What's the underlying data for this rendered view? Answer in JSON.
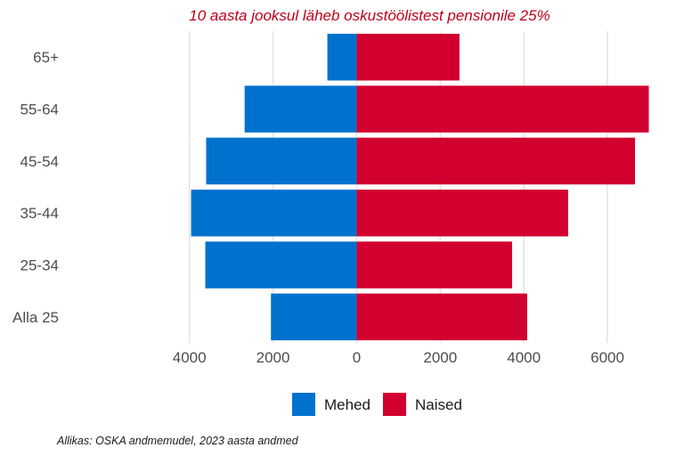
{
  "chart_data": {
    "type": "bar",
    "orientation": "horizontal-diverging",
    "title": "10 aasta jooksul läheb oskustöölistest pensionile 25%",
    "categories": [
      "65+",
      "55-64",
      "45-54",
      "35-44",
      "25-34",
      "Alla 25"
    ],
    "series": [
      {
        "name": "Mehed",
        "values": [
          -700,
          -2680,
          -3600,
          -3960,
          -3620,
          -2050
        ],
        "color": "#0072ce"
      },
      {
        "name": "Naised",
        "values": [
          2460,
          6990,
          6660,
          5060,
          3720,
          4080
        ],
        "color": "#d1002f"
      }
    ],
    "x_ticks": [
      -4000,
      -2000,
      0,
      2000,
      4000,
      6000
    ],
    "x_tick_labels": [
      "4000",
      "2000",
      "0",
      "2000",
      "4000",
      "6000"
    ],
    "xlim": [
      -4100,
      7150
    ],
    "grid": "vertical",
    "legend_position": "bottom",
    "title_color": "#c00018",
    "source": "Allikas: OSKA andmemudel, 2023 aasta andmed"
  }
}
